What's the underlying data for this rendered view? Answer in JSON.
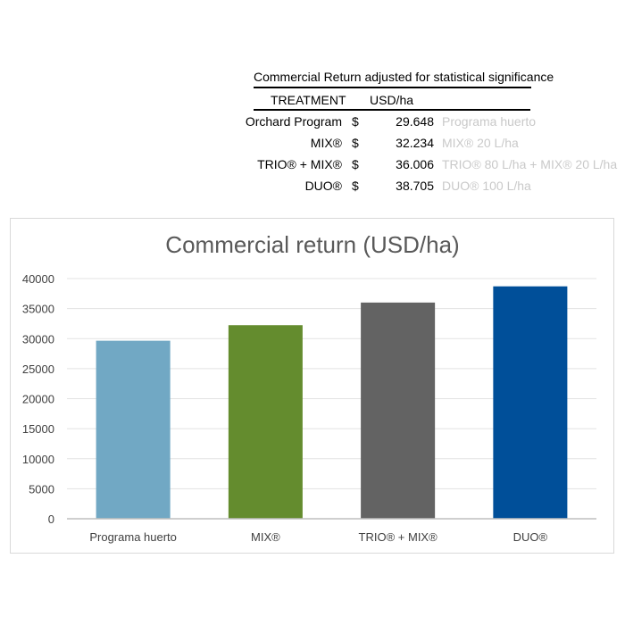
{
  "table": {
    "title": "Commercial Return adjusted for statistical significance",
    "header": {
      "treatment": "TREATMENT",
      "unit": "USD/ha"
    },
    "rows": [
      {
        "name": "Orchard Program",
        "currency": "$",
        "amount": "29.648",
        "note": "Programa huerto"
      },
      {
        "name": "MIX®",
        "currency": "$",
        "amount": "32.234",
        "note": "MIX® 20 L/ha"
      },
      {
        "name": "TRIO® + MIX®",
        "currency": "$",
        "amount": "36.006",
        "note": "TRIO® 80 L/ha + MIX® 20 L/ha"
      },
      {
        "name": "DUO®",
        "currency": "$",
        "amount": "38.705",
        "note": "DUO® 100 L/ha"
      }
    ]
  },
  "chart_data": {
    "type": "bar",
    "title": "Commercial return (USD/ha)",
    "categories": [
      "Programa huerto",
      "MIX®",
      "TRIO® + MIX®",
      "DUO®"
    ],
    "values": [
      29648,
      32234,
      36006,
      38705
    ],
    "colors": [
      "#71a8c4",
      "#648c2e",
      "#636363",
      "#004f99"
    ],
    "ylim": [
      0,
      40000
    ],
    "yticks": [
      0,
      5000,
      10000,
      15000,
      20000,
      25000,
      30000,
      35000,
      40000
    ],
    "grid": true,
    "legend": "none",
    "xlabel": "",
    "ylabel": ""
  }
}
